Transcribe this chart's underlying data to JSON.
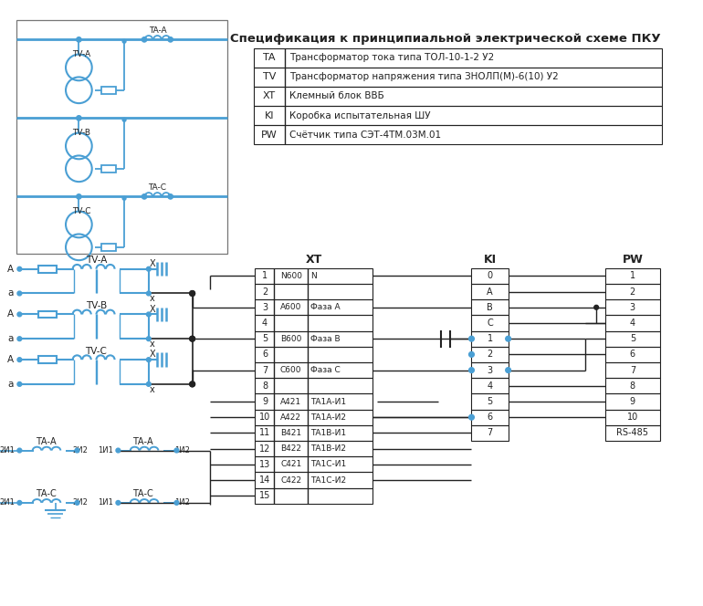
{
  "bg": "#ffffff",
  "lc": "#4a9fd4",
  "bk": "#222222",
  "title": "Спецификация к принципиальной электрической схеме ПКУ",
  "spec": [
    [
      "TA",
      "Трансформатор тока типа ТОЛ-10-1-2 У2"
    ],
    [
      "TV",
      "Трансформатор напряжения типа ЗНОЛП(М)-6(10) У2"
    ],
    [
      "XT",
      "Клемный блок ВВБ"
    ],
    [
      "KI",
      "Коробка испытательная ШУ"
    ],
    [
      "PW",
      "Счётчик типа СЭТ-4ТМ.03М.01"
    ]
  ],
  "xt_data": [
    [
      "1",
      "N600",
      "N"
    ],
    [
      "2",
      "",
      ""
    ],
    [
      "3",
      "A600",
      "Фаза A"
    ],
    [
      "4",
      "",
      ""
    ],
    [
      "5",
      "B600",
      "Фаза B"
    ],
    [
      "6",
      "",
      ""
    ],
    [
      "7",
      "C600",
      "Фаза C"
    ],
    [
      "8",
      "",
      ""
    ],
    [
      "9",
      "A421",
      "ТА1А-И1"
    ],
    [
      "10",
      "A422",
      "ТА1А-И2"
    ],
    [
      "11",
      "B421",
      "ТА1В-И1"
    ],
    [
      "12",
      "B422",
      "ТА1В-И2"
    ],
    [
      "13",
      "C421",
      "ТА1С-И1"
    ],
    [
      "14",
      "C422",
      "ТА1С-И2"
    ],
    [
      "15",
      "",
      ""
    ]
  ],
  "ki_data": [
    "0",
    "A",
    "B",
    "C",
    "1",
    "2",
    "3",
    "4",
    "5",
    "6",
    "7"
  ],
  "pw_data": [
    "1",
    "2",
    "3",
    "4",
    "5",
    "6",
    "7",
    "8",
    "9",
    "10",
    "RS-485"
  ]
}
